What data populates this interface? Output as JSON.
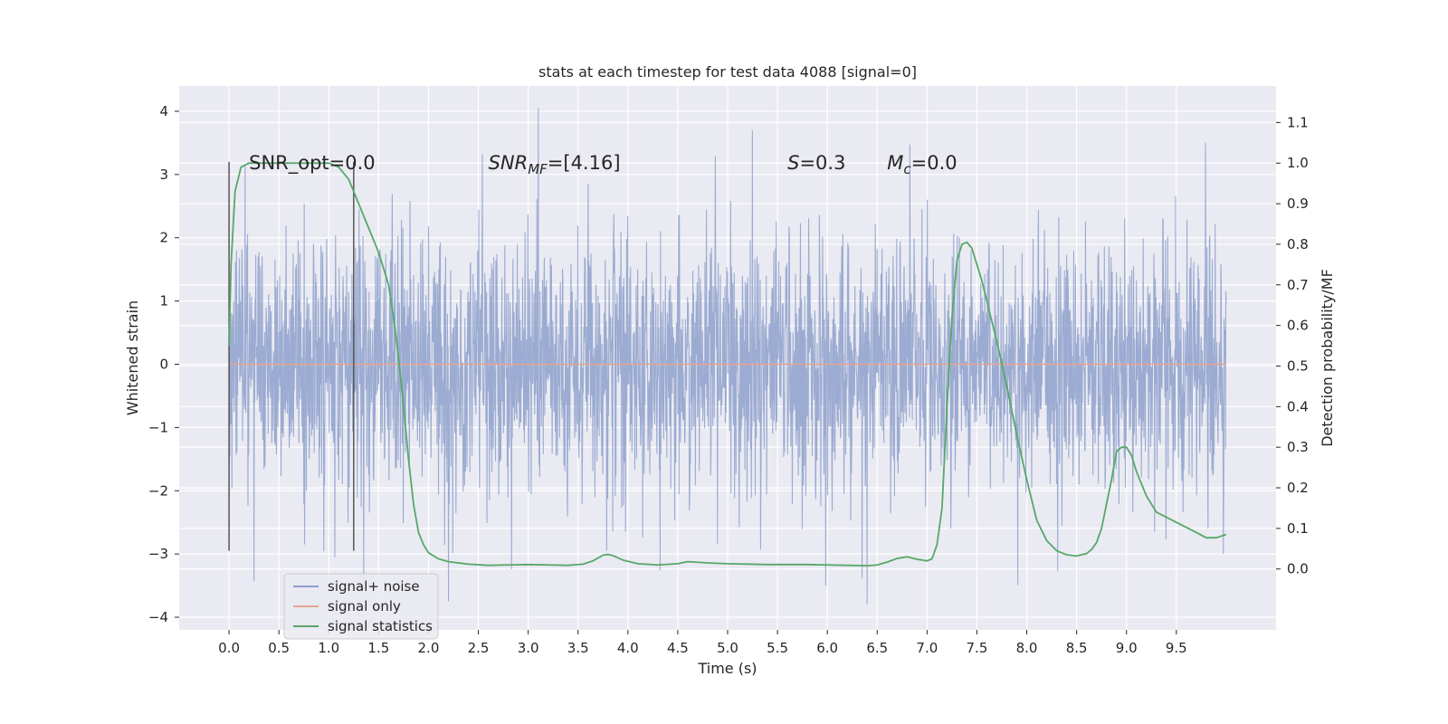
{
  "chart_data": {
    "type": "line",
    "title": "stats at each timestep for test data 4088 [signal=0]",
    "xlabel": "Time (s)",
    "ylabel": "Whitened strain",
    "y2label": "Detection probability/MF",
    "xlim": [
      -0.5,
      10.5
    ],
    "ylim": [
      -4.2,
      4.4
    ],
    "y2lim": [
      -0.15,
      1.19
    ],
    "grid": true,
    "legend_position": "lower-left",
    "x_ticks": [
      0.0,
      0.5,
      1.0,
      1.5,
      2.0,
      2.5,
      3.0,
      3.5,
      4.0,
      4.5,
      5.0,
      5.5,
      6.0,
      6.5,
      7.0,
      7.5,
      8.0,
      8.5,
      9.0,
      9.5
    ],
    "x_tick_labels": [
      "0.0",
      "0.5",
      "1.0",
      "1.5",
      "2.0",
      "2.5",
      "3.0",
      "3.5",
      "4.0",
      "4.5",
      "5.0",
      "5.5",
      "6.0",
      "6.5",
      "7.0",
      "7.5",
      "8.0",
      "8.5",
      "9.0",
      "9.5"
    ],
    "y_ticks": [
      4,
      3,
      2,
      1,
      0,
      -1,
      -2,
      -3,
      -4
    ],
    "y_tick_labels": [
      "4",
      "3",
      "2",
      "1",
      "0",
      "−1",
      "−2",
      "−3",
      "−4"
    ],
    "y2_ticks": [
      1.1,
      1.0,
      0.9,
      0.8,
      0.7,
      0.6,
      0.5,
      0.4,
      0.3,
      0.2,
      0.1,
      0.0
    ],
    "y2_tick_labels": [
      "1.1",
      "1.0",
      "0.9",
      "0.8",
      "0.7",
      "0.6",
      "0.5",
      "0.4",
      "0.3",
      "0.2",
      "0.1",
      "0.0"
    ],
    "series": [
      {
        "name": "signal+ noise",
        "color": "#8da0cb",
        "axis": "left",
        "x_range": [
          0.0,
          10.0
        ],
        "noise_std": 1.0,
        "peaks": [
          [
            3.1,
            4.05
          ],
          [
            5.25,
            3.7
          ],
          [
            2.2,
            -3.75
          ],
          [
            6.4,
            -3.8
          ],
          [
            1.35,
            -3.4
          ],
          [
            9.97,
            -3.0
          ]
        ]
      },
      {
        "name": "signal only",
        "color": "#e5a58f",
        "axis": "left",
        "x": [
          0.0,
          10.0
        ],
        "y": [
          0.0,
          0.0
        ]
      },
      {
        "name": "signal statistics",
        "color": "#55a868",
        "axis": "right",
        "x": [
          0.0,
          0.02,
          0.06,
          0.12,
          0.2,
          0.4,
          0.6,
          0.8,
          1.0,
          1.1,
          1.2,
          1.3,
          1.4,
          1.5,
          1.6,
          1.65,
          1.7,
          1.75,
          1.8,
          1.85,
          1.9,
          1.95,
          2.0,
          2.1,
          2.2,
          2.4,
          2.6,
          2.8,
          3.0,
          3.2,
          3.4,
          3.55,
          3.65,
          3.75,
          3.8,
          3.85,
          3.95,
          4.1,
          4.3,
          4.5,
          4.6,
          4.8,
          5.0,
          5.4,
          5.8,
          6.0,
          6.2,
          6.4,
          6.5,
          6.6,
          6.7,
          6.8,
          6.9,
          7.0,
          7.05,
          7.1,
          7.15,
          7.2,
          7.25,
          7.3,
          7.35,
          7.4,
          7.45,
          7.5,
          7.55,
          7.6,
          7.7,
          7.8,
          7.9,
          8.0,
          8.1,
          8.2,
          8.3,
          8.4,
          8.5,
          8.6,
          8.65,
          8.7,
          8.75,
          8.8,
          8.85,
          8.9,
          8.95,
          9.0,
          9.05,
          9.1,
          9.2,
          9.3,
          9.5,
          9.7,
          9.8,
          9.9,
          10.0
        ],
        "y": [
          0.55,
          0.75,
          0.93,
          0.99,
          1.0,
          1.0,
          1.0,
          1.0,
          1.0,
          0.99,
          0.96,
          0.9,
          0.84,
          0.78,
          0.7,
          0.62,
          0.52,
          0.4,
          0.27,
          0.16,
          0.09,
          0.06,
          0.04,
          0.025,
          0.018,
          0.012,
          0.009,
          0.01,
          0.011,
          0.01,
          0.009,
          0.012,
          0.02,
          0.034,
          0.036,
          0.033,
          0.022,
          0.013,
          0.01,
          0.013,
          0.018,
          0.015,
          0.013,
          0.011,
          0.011,
          0.01,
          0.009,
          0.008,
          0.01,
          0.017,
          0.026,
          0.03,
          0.024,
          0.02,
          0.025,
          0.06,
          0.15,
          0.4,
          0.62,
          0.76,
          0.8,
          0.805,
          0.79,
          0.75,
          0.71,
          0.66,
          0.56,
          0.45,
          0.33,
          0.22,
          0.12,
          0.07,
          0.045,
          0.035,
          0.032,
          0.038,
          0.048,
          0.065,
          0.1,
          0.16,
          0.22,
          0.29,
          0.3,
          0.3,
          0.28,
          0.24,
          0.18,
          0.14,
          0.115,
          0.09,
          0.077,
          0.077,
          0.085
        ]
      }
    ],
    "vlines": [
      {
        "x": 0.0,
        "y_range": [
          -2.95,
          3.2
        ]
      },
      {
        "x": 1.25,
        "y_range": [
          -2.95,
          3.2
        ]
      }
    ],
    "annotations": [
      {
        "x": 0.2,
        "y": 3.2,
        "text": "SNR_opt=0.0"
      },
      {
        "x": 2.6,
        "y": 3.2,
        "text": "SNR_MF=[4.16]",
        "math_main": "SNR",
        "math_sub": "MF",
        "suffix": "=[4.16]"
      },
      {
        "x": 5.6,
        "y": 3.2,
        "text": "S=0.3",
        "math_main": "S",
        "math_sub": "",
        "suffix": "=0.3"
      },
      {
        "x": 6.6,
        "y": 3.2,
        "text": "M_c=0.0",
        "math_main": "M",
        "math_sub": "c",
        "suffix": "=0.0"
      }
    ]
  }
}
